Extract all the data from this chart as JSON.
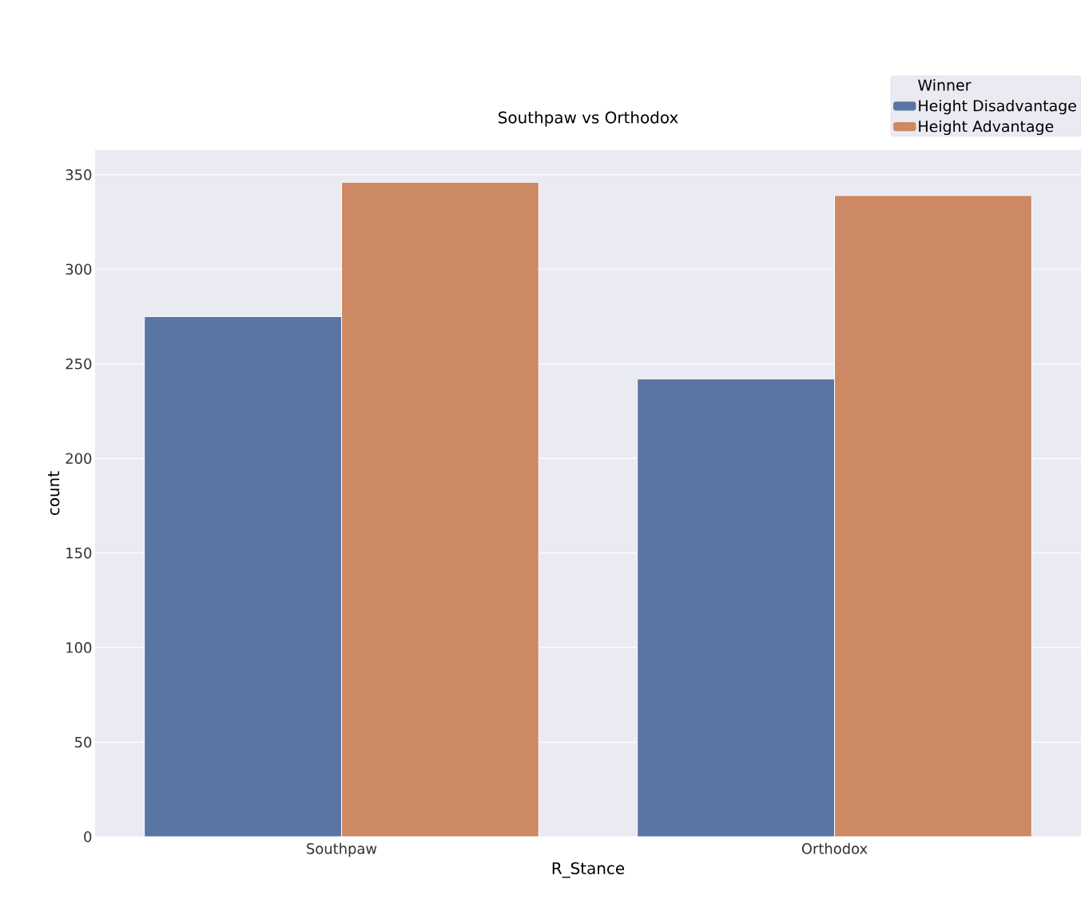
{
  "chart_data": {
    "type": "bar",
    "title": "Southpaw vs Orthodox",
    "xlabel": "R_Stance",
    "ylabel": "count",
    "legend_title": "Winner",
    "categories": [
      "Southpaw",
      "Orthodox"
    ],
    "series": [
      {
        "name": "Height Disadvantage",
        "color": "#5975a4",
        "values": [
          275,
          242
        ]
      },
      {
        "name": "Height Advantage",
        "color": "#cc8963",
        "values": [
          346,
          339
        ]
      }
    ],
    "ylim": [
      0,
      363
    ],
    "yticks": [
      0,
      50,
      100,
      150,
      200,
      250,
      300,
      350
    ],
    "grid": "y",
    "legend": "top right"
  }
}
